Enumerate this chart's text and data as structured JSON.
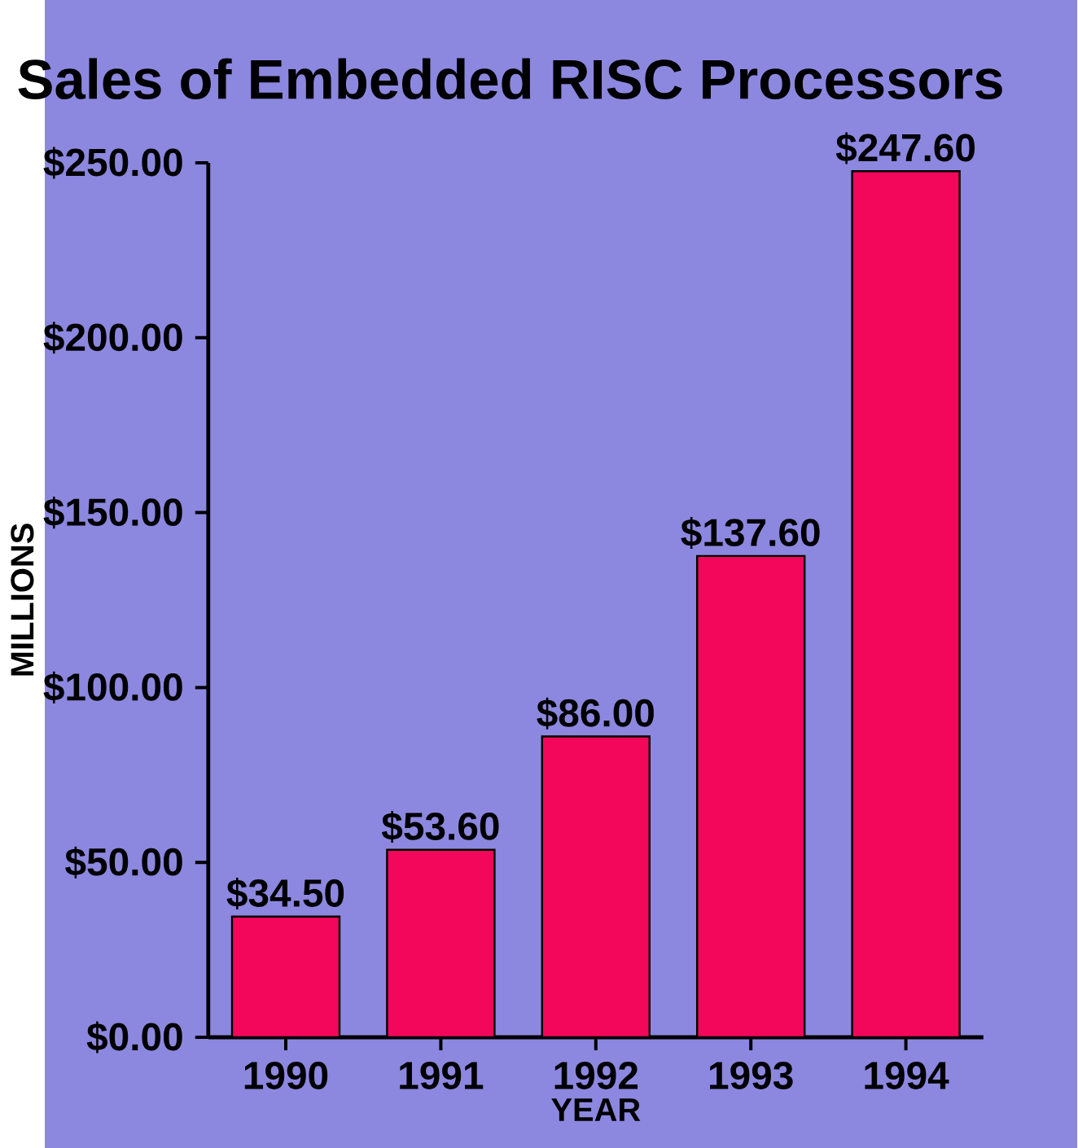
{
  "chart_data": {
    "type": "bar",
    "title": "Sales of Embedded RISC Processors",
    "xlabel": "YEAR",
    "ylabel": "MILLIONS",
    "categories": [
      "1990",
      "1991",
      "1992",
      "1993",
      "1994"
    ],
    "values": [
      34.5,
      53.6,
      86,
      137.6,
      247.6
    ],
    "value_labels": [
      "$34.50",
      "$53.60",
      "$86.00",
      "$137.60",
      "$247.60"
    ],
    "color": "#f2075a",
    "ylim": [
      0,
      250
    ],
    "yticks": [
      {
        "value": 0,
        "label": "$0.00"
      },
      {
        "value": 50,
        "label": "$50.00"
      },
      {
        "value": 100,
        "label": "$100.00"
      },
      {
        "value": 150,
        "label": "$150.00"
      },
      {
        "value": 200,
        "label": "$200.00"
      },
      {
        "value": 250,
        "label": "$250.00"
      }
    ]
  }
}
